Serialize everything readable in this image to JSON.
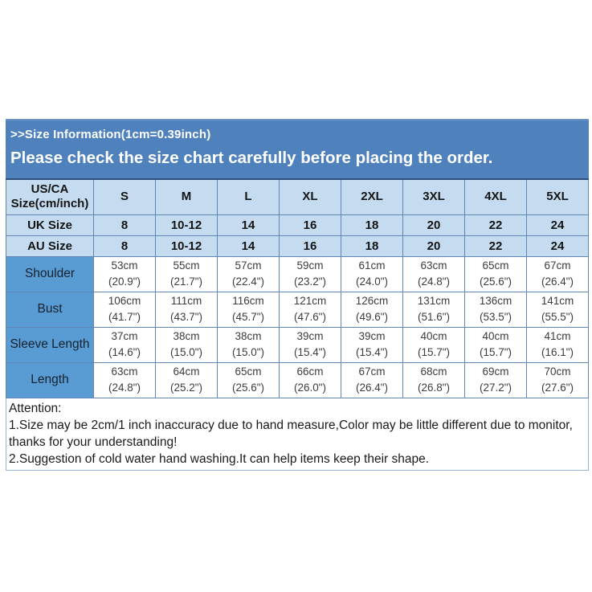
{
  "banner": {
    "line1": ">>Size Information(1cm=0.39inch)",
    "line2": "Please check the size chart carefully before placing the order."
  },
  "size_table": {
    "columns": [
      "US/CA Size(cm/inch)",
      "S",
      "M",
      "L",
      "XL",
      "2XL",
      "3XL",
      "4XL",
      "5XL"
    ],
    "simple_rows": [
      {
        "label": "UK Size",
        "values": [
          "8",
          "10-12",
          "14",
          "16",
          "18",
          "20",
          "22",
          "24"
        ]
      },
      {
        "label": "AU Size",
        "values": [
          "8",
          "10-12",
          "14",
          "16",
          "18",
          "20",
          "22",
          "24"
        ]
      }
    ],
    "measure_rows": [
      {
        "label": "Shoulder",
        "values": [
          {
            "cm": "53cm",
            "inch": "(20.9\")"
          },
          {
            "cm": "55cm",
            "inch": "(21.7\")"
          },
          {
            "cm": "57cm",
            "inch": "(22.4\")"
          },
          {
            "cm": "59cm",
            "inch": "(23.2\")"
          },
          {
            "cm": "61cm",
            "inch": "(24.0\")"
          },
          {
            "cm": "63cm",
            "inch": "(24.8\")"
          },
          {
            "cm": "65cm",
            "inch": "(25.6\")"
          },
          {
            "cm": "67cm",
            "inch": "(26.4\")"
          }
        ]
      },
      {
        "label": "Bust",
        "values": [
          {
            "cm": "106cm",
            "inch": "(41.7\")"
          },
          {
            "cm": "111cm",
            "inch": "(43.7\")"
          },
          {
            "cm": "116cm",
            "inch": "(45.7\")"
          },
          {
            "cm": "121cm",
            "inch": "(47.6\")"
          },
          {
            "cm": "126cm",
            "inch": "(49.6\")"
          },
          {
            "cm": "131cm",
            "inch": "(51.6\")"
          },
          {
            "cm": "136cm",
            "inch": "(53.5\")"
          },
          {
            "cm": "141cm",
            "inch": "(55.5\")"
          }
        ]
      },
      {
        "label": "Sleeve Length",
        "values": [
          {
            "cm": "37cm",
            "inch": "(14.6\")"
          },
          {
            "cm": "38cm",
            "inch": "(15.0\")"
          },
          {
            "cm": "38cm",
            "inch": "(15.0\")"
          },
          {
            "cm": "39cm",
            "inch": "(15.4\")"
          },
          {
            "cm": "39cm",
            "inch": "(15.4\")"
          },
          {
            "cm": "40cm",
            "inch": "(15.7\")"
          },
          {
            "cm": "40cm",
            "inch": "(15.7\")"
          },
          {
            "cm": "41cm",
            "inch": "(16.1\")"
          }
        ]
      },
      {
        "label": "Length",
        "values": [
          {
            "cm": "63cm",
            "inch": "(24.8\")"
          },
          {
            "cm": "64cm",
            "inch": "(25.2\")"
          },
          {
            "cm": "65cm",
            "inch": "(25.6\")"
          },
          {
            "cm": "66cm",
            "inch": "(26.0\")"
          },
          {
            "cm": "67cm",
            "inch": "(26.4\")"
          },
          {
            "cm": "68cm",
            "inch": "(26.8\")"
          },
          {
            "cm": "69cm",
            "inch": "(27.2\")"
          },
          {
            "cm": "70cm",
            "inch": "(27.6\")"
          }
        ]
      }
    ]
  },
  "attention": {
    "heading": "Attention:",
    "note1": "1.Size may be 2cm/1 inch inaccuracy due to hand measure,Color may be little different due to monitor, thanks for your understanding!",
    "note2": "2.Suggestion of cold water hand washing.It can help items keep their shape."
  },
  "colors": {
    "banner_bg": "#4f81bd",
    "header_cell_bg": "#c5dcf0",
    "label_cell_bg": "#599bd3",
    "cell_border": "#5f86b5",
    "banner_text": "#ffffff",
    "body_text": "#1a1a1a"
  }
}
